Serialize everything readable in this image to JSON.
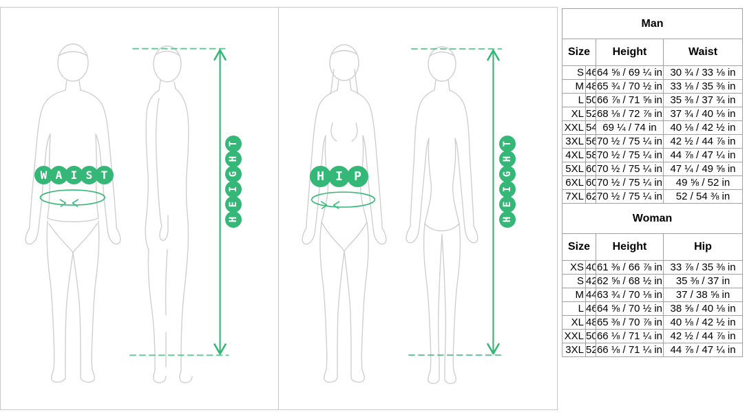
{
  "accent_color": "#35b877",
  "figure_color": "#cfcfcf",
  "panels": {
    "man": {
      "measure_badge": "WAIST",
      "height_badge": "HEIGHT"
    },
    "woman": {
      "measure_badge": "HIP",
      "height_badge": "HEIGHT"
    }
  },
  "tables": {
    "man": {
      "title": "Man",
      "headers": {
        "size": "Size",
        "height": "Height",
        "measure": "Waist"
      },
      "rows": [
        [
          "S",
          "46",
          "64 ⅝ / 69 ¼ in",
          "30 ¾ / 33 ⅛ in"
        ],
        [
          "M",
          "48",
          "65 ¾ / 70 ½ in",
          "33 ⅛ / 35 ⅜ in"
        ],
        [
          "L",
          "50",
          "66 ⅞ / 71 ⅝ in",
          "35 ⅜ / 37 ¾ in"
        ],
        [
          "XL",
          "52",
          "68 ⅛ / 72 ⅞ in",
          "37 ¾ / 40 ⅛ in"
        ],
        [
          "XXL",
          "54",
          "69 ¼ / 74 in",
          "40 ⅛ / 42 ½ in"
        ],
        [
          "3XL",
          "56",
          "70 ½ / 75 ¼ in",
          "42 ½ / 44 ⅞ in"
        ],
        [
          "4XL",
          "58",
          "70 ½ / 75 ¼ in",
          "44 ⅞ / 47 ¼ in"
        ],
        [
          "5XL",
          "60",
          "70 ½ / 75 ¼ in",
          "47 ¼ / 49 ⅝ in"
        ],
        [
          "6XL",
          "60",
          "70 ½ / 75 ¼ in",
          "49 ⅝ / 52 in"
        ],
        [
          "7XL",
          "62",
          "70 ½ / 75 ¼ in",
          "52 / 54 ⅜ in"
        ]
      ]
    },
    "woman": {
      "title": "Woman",
      "headers": {
        "size": "Size",
        "height": "Height",
        "measure": "Hip"
      },
      "rows": [
        [
          "XS",
          "40",
          "61 ⅜ / 66 ⅞ in",
          "33 ⅞ / 35 ⅜ in"
        ],
        [
          "S",
          "42",
          "62 ⅝ / 68 ½ in",
          "35 ⅜ / 37 in"
        ],
        [
          "M",
          "44",
          "63 ¾ / 70 ⅛ in",
          "37 / 38 ⅝ in"
        ],
        [
          "L",
          "46",
          "64 ⅝ / 70 ½ in",
          "38 ⅝ / 40 ⅛ in"
        ],
        [
          "XL",
          "48",
          "65 ⅜ / 70 ⅞ in",
          "40 ⅛ / 42 ½ in"
        ],
        [
          "XXL",
          "50",
          "66 ⅛ / 71 ¼ in",
          "42 ½ / 44 ⅞ in"
        ],
        [
          "3XL",
          "52",
          "66 ⅛ / 71 ¼ in",
          "44 ⅞ / 47 ¼ in"
        ]
      ]
    }
  }
}
